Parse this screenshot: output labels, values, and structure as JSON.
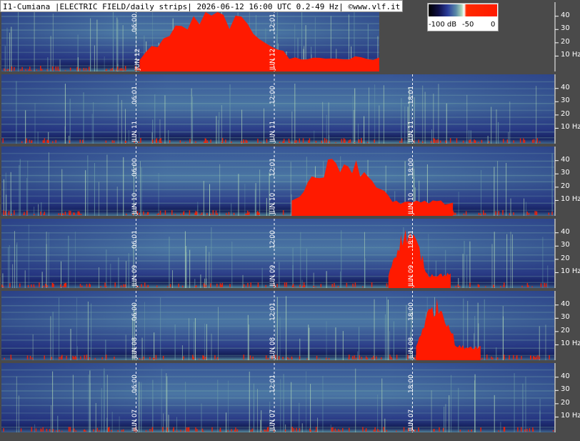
{
  "title": "I1-Cumiana |ELECTRIC FIELD/daily strips| 2026-06-12 16:00 UTC 0.2-49 Hz| ©www.vlf.it",
  "colorbar": {
    "labels": [
      "-100 dB",
      "-50",
      "0"
    ],
    "range_db": [
      -100,
      0
    ]
  },
  "chart_data": {
    "type": "heatmap",
    "title": "I1-Cumiana |ELECTRIC FIELD/daily strips| 2026-06-12 16:00 UTC 0.2-49 Hz| ©www.vlf.it",
    "ylabel": "Hz",
    "ylim": [
      0,
      49
    ],
    "yticks": [
      "40",
      "30",
      "20",
      "10 Hz"
    ],
    "ytick_values": [
      40,
      30,
      20,
      10
    ],
    "colors": {
      "low": "#1c2a7a",
      "mid": "#7aaa98",
      "high": "#ff1a00",
      "background": "#4a4a4a"
    },
    "strips": [
      {
        "day": "JUN 12",
        "markers": [
          "JUN 12",
          "06:00",
          "JUN 12",
          "12:01"
        ],
        "marker_hours": [
          0,
          6,
          12,
          12
        ],
        "data_end_hour": 16.4
      },
      {
        "day": "JUN 11",
        "markers": [
          "06:01",
          "JUN 11",
          "12:00",
          "JUN 11",
          "18:01",
          "JUN 11"
        ],
        "marker_hours": [
          6,
          6,
          12,
          12,
          18,
          18
        ],
        "data_end_hour": 24
      },
      {
        "day": "JUN 10",
        "markers": [
          "JUN 10",
          "06:00",
          "12:01",
          "JUN 10",
          "18:00",
          "JUN 10"
        ],
        "marker_hours": [
          6,
          6,
          12,
          12,
          18,
          18
        ],
        "data_end_hour": 24
      },
      {
        "day": "JUN 09",
        "markers": [
          "06:01",
          "JUN 09",
          "12:00",
          "JUN 09",
          "18:01",
          "JUN 09"
        ],
        "marker_hours": [
          6,
          6,
          12,
          12,
          18,
          18
        ],
        "data_end_hour": 24
      },
      {
        "day": "JUN 08",
        "markers": [
          "06:00",
          "JUN 08",
          "12:01",
          "JUN 08",
          "18:00",
          "JUN 08"
        ],
        "marker_hours": [
          6,
          6,
          12,
          12,
          18,
          18
        ],
        "data_end_hour": 24
      },
      {
        "day": "JUN 07",
        "markers": [
          "06:00",
          "JUN 07",
          "12:01",
          "JUN 07",
          "18:00",
          "JUN 07"
        ],
        "marker_hours": [
          6,
          6,
          12,
          12,
          18,
          18
        ],
        "data_end_hour": 24
      }
    ],
    "events": [
      {
        "day": "JUN 12",
        "start_hour": 6.0,
        "end_hour": 16.4,
        "intensity": "high"
      },
      {
        "day": "JUN 10",
        "start_hour": 12.6,
        "end_hour": 19.6,
        "intensity": "high"
      },
      {
        "day": "JUN 09",
        "start_hour": 16.8,
        "end_hour": 19.5,
        "intensity": "high"
      },
      {
        "day": "JUN 08",
        "start_hour": 18.0,
        "end_hour": 20.8,
        "intensity": "high"
      }
    ]
  }
}
